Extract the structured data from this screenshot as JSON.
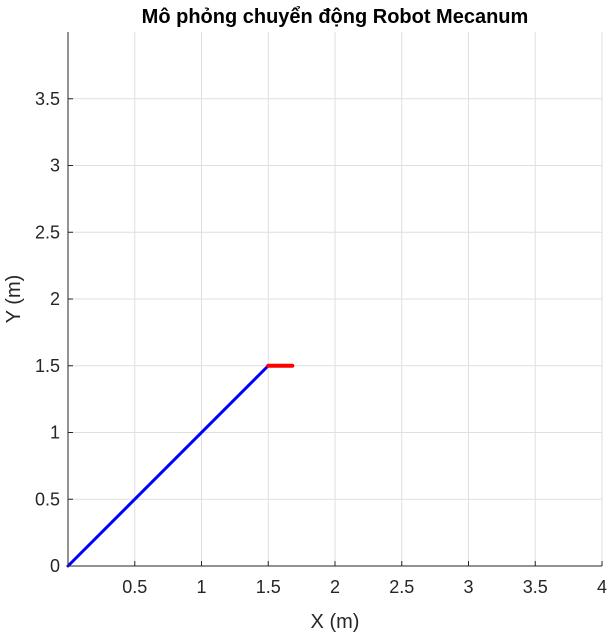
{
  "chart_data": {
    "type": "line",
    "title": "Mô phỏng chuyển động Robot Mecanum",
    "xlabel": "X (m)",
    "ylabel": "Y (m)",
    "xlim": [
      0,
      4
    ],
    "ylim": [
      0,
      4
    ],
    "grid": true,
    "x_ticks": [
      "0.5",
      "1",
      "1.5",
      "2",
      "2.5",
      "3",
      "3.5",
      "4"
    ],
    "y_ticks": [
      "0",
      "0.5",
      "1",
      "1.5",
      "2",
      "2.5",
      "3",
      "3.5"
    ],
    "series": [
      {
        "color": "#0000ff",
        "x": [
          0,
          1.5
        ],
        "y": [
          0,
          1.5
        ]
      },
      {
        "color": "#ff0000",
        "x": [
          1.5,
          1.68
        ],
        "y": [
          1.5,
          1.5
        ]
      }
    ]
  }
}
